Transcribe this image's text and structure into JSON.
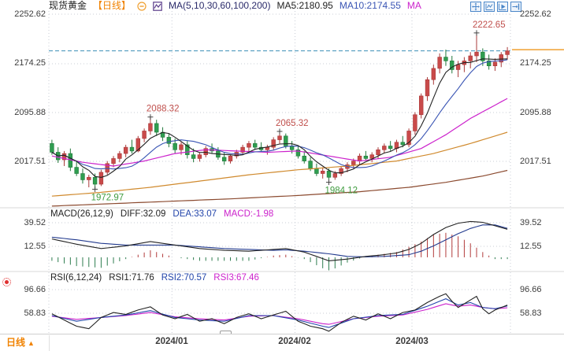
{
  "header": {
    "symbol": "现货黄金",
    "period_tag": "【日线】",
    "ma_label": "MA(5,10,30,60,100,200)",
    "ma5_label": "MA5:2180.95",
    "ma10_label": "MA10:2174.55",
    "ma_more_label": "MA"
  },
  "macd_header": {
    "title": "MACD(26,12,9)",
    "diff": "DIFF:32.09",
    "dea": "DEA:33.07",
    "macd": "MACD:-1.98"
  },
  "rsi_header": {
    "title": "RSI(6,12,24)",
    "rsi1": "RSI1:71.76",
    "rsi2": "RSI2:70.57",
    "rsi3": "RSI3:67.46"
  },
  "bottom_bar": {
    "period": "日线",
    "arrow": "▲"
  },
  "colors": {
    "up": "#c94a4a",
    "up_stroke": "#a93a3a",
    "down": "#2f9e50",
    "down_stroke": "#237a3c",
    "ma5": "#222222",
    "ma10": "#3a55b4",
    "annotation_high": "#c0504d",
    "annotation_low": "#3f9c3f",
    "price_line": "#3b8fb5",
    "axis_highlight": "#f0a030",
    "diff": "#222222",
    "dea": "#223a8e",
    "hist_pos": "#b23b3b",
    "hist_neg": "#2e7d4f",
    "rsi1": "#222222",
    "rsi2": "#2244aa",
    "rsi3": "#cc22cc",
    "grid": "#c9cdd6",
    "divider": "#d9d9d9",
    "text": "#3c3c3c",
    "toolbar": "#4a86c8",
    "accent_orange": "#f08200",
    "marker": "#444444"
  },
  "chart_data": {
    "type": "candlestick+indicators",
    "title": "现货黄金 日线",
    "x_axis": {
      "labels": [
        "2024/01",
        "2024/02",
        "2024/03"
      ],
      "boundary_indices": [
        19.5,
        39.5,
        58.5
      ]
    },
    "price_axis": {
      "ticks": [
        2252.62,
        2174.25,
        2095.88,
        2017.51
      ]
    },
    "last_price": 2194.0,
    "candles": [
      [
        2046,
        2052,
        2028,
        2032
      ],
      [
        2032,
        2040,
        2015,
        2020
      ],
      [
        2020,
        2034,
        2010,
        2030
      ],
      [
        2030,
        2038,
        2002,
        2008
      ],
      [
        2008,
        2018,
        1994,
        1998
      ],
      [
        1998,
        2006,
        1982,
        1988
      ],
      [
        1988,
        1996,
        1976,
        1992
      ],
      [
        1992,
        1998,
        1972.97,
        1981
      ],
      [
        1981,
        2004,
        1978,
        2000
      ],
      [
        2000,
        2018,
        1996,
        2014
      ],
      [
        2014,
        2026,
        2008,
        2022
      ],
      [
        2022,
        2034,
        2016,
        2030
      ],
      [
        2030,
        2044,
        2024,
        2040
      ],
      [
        2040,
        2052,
        2030,
        2034
      ],
      [
        2034,
        2058,
        2032,
        2054
      ],
      [
        2054,
        2070,
        2048,
        2066
      ],
      [
        2066,
        2088.32,
        2060,
        2078
      ],
      [
        2078,
        2084,
        2058,
        2064
      ],
      [
        2064,
        2072,
        2050,
        2056
      ],
      [
        2056,
        2062,
        2040,
        2046
      ],
      [
        2046,
        2054,
        2030,
        2036
      ],
      [
        2036,
        2048,
        2028,
        2044
      ],
      [
        2044,
        2050,
        2022,
        2028
      ],
      [
        2028,
        2038,
        2016,
        2022
      ],
      [
        2022,
        2032,
        2017,
        2028
      ],
      [
        2028,
        2042,
        2024,
        2038
      ],
      [
        2038,
        2046,
        2030,
        2034
      ],
      [
        2034,
        2040,
        2020,
        2024
      ],
      [
        2024,
        2032,
        2012,
        2018
      ],
      [
        2018,
        2028,
        2014,
        2026
      ],
      [
        2026,
        2036,
        2022,
        2032
      ],
      [
        2032,
        2044,
        2028,
        2040
      ],
      [
        2040,
        2050,
        2034,
        2046
      ],
      [
        2046,
        2052,
        2036,
        2040
      ],
      [
        2040,
        2048,
        2032,
        2036
      ],
      [
        2036,
        2044,
        2028,
        2040
      ],
      [
        2040,
        2056,
        2036,
        2052
      ],
      [
        2052,
        2065.32,
        2046,
        2058
      ],
      [
        2058,
        2062,
        2038,
        2042
      ],
      [
        2042,
        2050,
        2030,
        2036
      ],
      [
        2036,
        2042,
        2022,
        2026
      ],
      [
        2026,
        2034,
        2014,
        2018
      ],
      [
        2018,
        2024,
        2002,
        2006
      ],
      [
        2006,
        2014,
        1994,
        1998
      ],
      [
        1998,
        2008,
        1990,
        2002
      ],
      [
        2002,
        2006,
        1984.12,
        1992
      ],
      [
        1992,
        2002,
        1988,
        1998
      ],
      [
        1998,
        2010,
        1994,
        2006
      ],
      [
        2006,
        2016,
        2000,
        2012
      ],
      [
        2012,
        2022,
        2006,
        2018
      ],
      [
        2018,
        2030,
        2012,
        2026
      ],
      [
        2026,
        2034,
        2018,
        2022
      ],
      [
        2022,
        2032,
        2016,
        2028
      ],
      [
        2028,
        2040,
        2022,
        2036
      ],
      [
        2036,
        2046,
        2030,
        2042
      ],
      [
        2042,
        2050,
        2034,
        2038
      ],
      [
        2038,
        2052,
        2032,
        2048
      ],
      [
        2048,
        2058,
        2040,
        2044
      ],
      [
        2044,
        2070,
        2040,
        2066
      ],
      [
        2066,
        2096,
        2060,
        2092
      ],
      [
        2092,
        2126,
        2086,
        2122
      ],
      [
        2122,
        2152,
        2114,
        2148
      ],
      [
        2148,
        2172,
        2140,
        2166
      ],
      [
        2166,
        2190,
        2158,
        2184
      ],
      [
        2184,
        2196,
        2170,
        2178
      ],
      [
        2178,
        2186,
        2158,
        2164
      ],
      [
        2164,
        2178,
        2152,
        2172
      ],
      [
        2172,
        2184,
        2160,
        2178
      ],
      [
        2178,
        2192,
        2166,
        2186
      ],
      [
        2186,
        2222.65,
        2176,
        2192
      ],
      [
        2192,
        2198,
        2170,
        2178
      ],
      [
        2178,
        2188,
        2164,
        2170
      ],
      [
        2170,
        2182,
        2162,
        2176
      ],
      [
        2176,
        2192,
        2168,
        2188
      ],
      [
        2188,
        2200,
        2180,
        2194
      ]
    ],
    "ma_overlays": [
      {
        "name": "MA30",
        "color": "#cc22cc",
        "points": [
          [
            0,
            2026
          ],
          [
            5,
            2016
          ],
          [
            10,
            2010
          ],
          [
            15,
            2018
          ],
          [
            20,
            2030
          ],
          [
            25,
            2036
          ],
          [
            30,
            2034
          ],
          [
            35,
            2032
          ],
          [
            40,
            2034
          ],
          [
            45,
            2026
          ],
          [
            50,
            2018
          ],
          [
            55,
            2024
          ],
          [
            60,
            2038
          ],
          [
            64,
            2060
          ],
          [
            68,
            2086
          ],
          [
            71,
            2102
          ],
          [
            74,
            2118
          ]
        ]
      },
      {
        "name": "MA60",
        "color": "#d08a2e",
        "points": [
          [
            0,
            1962
          ],
          [
            8,
            1968
          ],
          [
            16,
            1976
          ],
          [
            24,
            1986
          ],
          [
            32,
            1996
          ],
          [
            40,
            2004
          ],
          [
            48,
            2010
          ],
          [
            56,
            2018
          ],
          [
            62,
            2030
          ],
          [
            68,
            2046
          ],
          [
            74,
            2064
          ]
        ]
      },
      {
        "name": "MA100",
        "color": "#8b4a2f",
        "points": [
          [
            0,
            1946
          ],
          [
            10,
            1950
          ],
          [
            20,
            1954
          ],
          [
            30,
            1958
          ],
          [
            40,
            1963
          ],
          [
            50,
            1969
          ],
          [
            58,
            1976
          ],
          [
            64,
            1984
          ],
          [
            70,
            1994
          ],
          [
            74,
            2003
          ]
        ]
      }
    ],
    "macd": {
      "params": "26,12,9",
      "axis_ticks": [
        39.52,
        12.55
      ],
      "values": {
        "diff": 32.09,
        "dea": 33.07,
        "macd": -1.98
      },
      "diff_points": [
        [
          0,
          21
        ],
        [
          4,
          15
        ],
        [
          8,
          10
        ],
        [
          12,
          13
        ],
        [
          16,
          18
        ],
        [
          20,
          14
        ],
        [
          24,
          10
        ],
        [
          28,
          8
        ],
        [
          32,
          7
        ],
        [
          36,
          9
        ],
        [
          38,
          10
        ],
        [
          41,
          6
        ],
        [
          45,
          -4
        ],
        [
          48,
          -2
        ],
        [
          51,
          1
        ],
        [
          54,
          3
        ],
        [
          56,
          5
        ],
        [
          58,
          9
        ],
        [
          60,
          16
        ],
        [
          62,
          26
        ],
        [
          64,
          34
        ],
        [
          66,
          39
        ],
        [
          68,
          41
        ],
        [
          70,
          40
        ],
        [
          72,
          36
        ],
        [
          74,
          32.1
        ]
      ],
      "dea_points": [
        [
          0,
          23
        ],
        [
          4,
          20
        ],
        [
          8,
          16
        ],
        [
          12,
          14
        ],
        [
          16,
          14
        ],
        [
          20,
          14
        ],
        [
          24,
          12
        ],
        [
          28,
          10
        ],
        [
          32,
          9
        ],
        [
          36,
          8
        ],
        [
          38,
          8.5
        ],
        [
          41,
          7
        ],
        [
          45,
          4
        ],
        [
          48,
          1
        ],
        [
          51,
          0.5
        ],
        [
          54,
          1
        ],
        [
          56,
          2
        ],
        [
          58,
          3
        ],
        [
          60,
          7
        ],
        [
          62,
          13
        ],
        [
          64,
          20
        ],
        [
          66,
          27
        ],
        [
          68,
          33
        ],
        [
          70,
          37
        ],
        [
          72,
          37
        ],
        [
          74,
          33.1
        ]
      ]
    },
    "rsi": {
      "params": "6,12,24",
      "axis_ticks": [
        96.66,
        58.83
      ],
      "values": {
        "rsi1": 71.76,
        "rsi2": 70.57,
        "rsi3": 67.46
      },
      "series": [
        {
          "name": "RSI1",
          "color": "#222222",
          "points": [
            [
              0,
              58
            ],
            [
              2,
              48
            ],
            [
              4,
              38
            ],
            [
              6,
              34
            ],
            [
              8,
              52
            ],
            [
              10,
              60
            ],
            [
              12,
              57
            ],
            [
              14,
              64
            ],
            [
              16,
              69
            ],
            [
              18,
              56
            ],
            [
              20,
              50
            ],
            [
              22,
              57
            ],
            [
              24,
              46
            ],
            [
              26,
              50
            ],
            [
              28,
              42
            ],
            [
              30,
              52
            ],
            [
              32,
              58
            ],
            [
              34,
              50
            ],
            [
              36,
              56
            ],
            [
              38,
              62
            ],
            [
              40,
              46
            ],
            [
              42,
              38
            ],
            [
              44,
              34
            ],
            [
              45,
              30
            ],
            [
              47,
              44
            ],
            [
              49,
              54
            ],
            [
              51,
              48
            ],
            [
              53,
              58
            ],
            [
              55,
              50
            ],
            [
              57,
              60
            ],
            [
              59,
              64
            ],
            [
              61,
              76
            ],
            [
              63,
              86
            ],
            [
              64,
              90
            ],
            [
              65,
              78
            ],
            [
              66,
              68
            ],
            [
              67,
              74
            ],
            [
              68,
              80
            ],
            [
              69,
              86
            ],
            [
              70,
              66
            ],
            [
              71,
              58
            ],
            [
              72,
              64
            ],
            [
              73,
              68
            ],
            [
              74,
              71.8
            ]
          ]
        },
        {
          "name": "RSI2",
          "color": "#2244aa",
          "points": [
            [
              0,
              55
            ],
            [
              4,
              46
            ],
            [
              8,
              52
            ],
            [
              12,
              56
            ],
            [
              16,
              63
            ],
            [
              20,
              52
            ],
            [
              24,
              48
            ],
            [
              28,
              46
            ],
            [
              32,
              55
            ],
            [
              36,
              55
            ],
            [
              40,
              48
            ],
            [
              44,
              38
            ],
            [
              45,
              36
            ],
            [
              49,
              50
            ],
            [
              53,
              55
            ],
            [
              57,
              57
            ],
            [
              61,
              70
            ],
            [
              64,
              82
            ],
            [
              66,
              72
            ],
            [
              68,
              76
            ],
            [
              70,
              68
            ],
            [
              72,
              66
            ],
            [
              74,
              70.6
            ]
          ]
        },
        {
          "name": "RSI3",
          "color": "#cc22cc",
          "points": [
            [
              0,
              54
            ],
            [
              4,
              49
            ],
            [
              8,
              52
            ],
            [
              12,
              55
            ],
            [
              16,
              60
            ],
            [
              20,
              53
            ],
            [
              24,
              50
            ],
            [
              28,
              48
            ],
            [
              32,
              54
            ],
            [
              36,
              55
            ],
            [
              40,
              50
            ],
            [
              44,
              42
            ],
            [
              45,
              41
            ],
            [
              49,
              50
            ],
            [
              53,
              54
            ],
            [
              57,
              56
            ],
            [
              61,
              65
            ],
            [
              64,
              74
            ],
            [
              66,
              70
            ],
            [
              68,
              72
            ],
            [
              70,
              68
            ],
            [
              72,
              66
            ],
            [
              74,
              67.5
            ]
          ]
        }
      ]
    },
    "annotations": [
      {
        "label": "2088.32",
        "index": 16,
        "price": 2088.32,
        "type": "high"
      },
      {
        "label": "2065.32",
        "index": 37,
        "price": 2065.32,
        "type": "high"
      },
      {
        "label": "2222.65",
        "index": 69,
        "price": 2222.65,
        "type": "high"
      },
      {
        "label": "1972.97",
        "index": 7,
        "price": 1972.97,
        "type": "low"
      },
      {
        "label": "1984.12",
        "index": 45,
        "price": 1984.12,
        "type": "low"
      }
    ]
  }
}
